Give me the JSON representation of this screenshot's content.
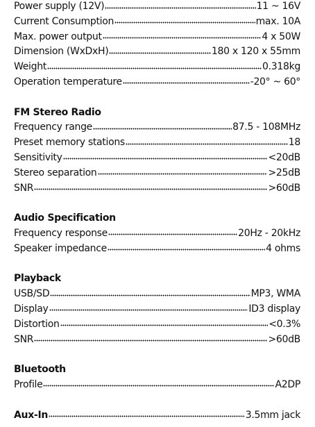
{
  "sections": [
    {
      "rows": [
        {
          "label": "Power supply (12V)",
          "value": "11 ~ 16V"
        },
        {
          "label": "Current Consumption",
          "value": "max. 10A"
        },
        {
          "label": "Max. power output",
          "value": "4 x 50W"
        },
        {
          "label": "Dimension (WxDxH)",
          "value": "180 x 120 x 55mm"
        },
        {
          "label": "Weight",
          "value": "0.318kg"
        },
        {
          "label": "Operation temperature",
          "value": "-20° ~ 60°"
        }
      ]
    },
    {
      "heading": "FM Stereo Radio",
      "rows": [
        {
          "label": "Frequency range",
          "value": "87.5 - 108MHz"
        },
        {
          "label": "Preset memory stations",
          "value": "18"
        },
        {
          "label": "Sensitivity",
          "value": "<20dB"
        },
        {
          "label": "Stereo separation",
          "value": ">25dB"
        },
        {
          "label": "SNR",
          "value": ">60dB"
        }
      ]
    },
    {
      "heading": "Audio Specification",
      "rows": [
        {
          "label": "Frequency response",
          "value": "20Hz - 20kHz"
        },
        {
          "label": "Speaker impedance",
          "value": "4 ohms"
        }
      ]
    },
    {
      "heading": "Playback",
      "rows": [
        {
          "label": "USB/SD",
          "value": "MP3, WMA"
        },
        {
          "label": "Display",
          "value": "ID3 display"
        },
        {
          "label": "Distortion",
          "value": "<0.3%"
        },
        {
          "label": "SNR",
          "value": ">60dB"
        }
      ]
    },
    {
      "heading": "Bluetooth",
      "rows": [
        {
          "label": "Profile",
          "value": "A2DP"
        }
      ]
    }
  ],
  "aux": {
    "label": "Aux-In",
    "value": "3.5mm jack"
  }
}
